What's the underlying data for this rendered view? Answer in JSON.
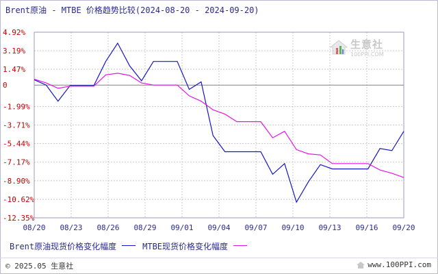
{
  "title": "Brent原油 - MTBE 价格趋势比较(2024-08-20 - 2024-09-20)",
  "watermark": {
    "main": "生意社",
    "sub": "100PPI.COM"
  },
  "legend": {
    "series1": "Brent原油现货价格变化幅度",
    "series2": "MTBE现货价格变化幅度"
  },
  "footer": {
    "copyright": "© 2025.05 生意社",
    "site": "www.100PPI.com"
  },
  "colors": {
    "series1": "#1414c8",
    "series2": "#e614e6",
    "axis": "#2a2a8a",
    "grid": "#c8c8c8"
  },
  "chart_data": {
    "type": "line",
    "x_ticks": [
      "08/20",
      "08/23",
      "08/26",
      "08/29",
      "09/01",
      "09/04",
      "09/07",
      "09/10",
      "09/13",
      "09/16",
      "09/20"
    ],
    "y_ticks": [
      "4.92%",
      "3.19%",
      "1.47%",
      "0",
      "-1.99%",
      "-3.71%",
      "-5.44%",
      "-7.17%",
      "-8.90%",
      "-10.62%",
      "-12.35%"
    ],
    "y_tick_values": [
      4.92,
      3.19,
      1.47,
      0,
      -1.99,
      -3.71,
      -5.44,
      -7.17,
      -8.9,
      -10.62,
      -12.35
    ],
    "ylim": [
      -12.35,
      4.92
    ],
    "x_start": "2024-08-20",
    "x_end": "2024-09-20",
    "series": [
      {
        "name": "Brent原油现货价格变化幅度",
        "color": "#1414c8",
        "points": [
          [
            "2024-08-20",
            0.5
          ],
          [
            "2024-08-21",
            0.0
          ],
          [
            "2024-08-22",
            -1.5
          ],
          [
            "2024-08-23",
            -0.05
          ],
          [
            "2024-08-24",
            -0.05
          ],
          [
            "2024-08-25",
            -0.05
          ],
          [
            "2024-08-26",
            2.2
          ],
          [
            "2024-08-27",
            3.9
          ],
          [
            "2024-08-28",
            1.8
          ],
          [
            "2024-08-29",
            0.4
          ],
          [
            "2024-08-30",
            2.2
          ],
          [
            "2024-08-31",
            2.2
          ],
          [
            "2024-09-01",
            2.2
          ],
          [
            "2024-09-02",
            -0.4
          ],
          [
            "2024-09-03",
            0.3
          ],
          [
            "2024-09-04",
            -4.7
          ],
          [
            "2024-09-05",
            -6.2
          ],
          [
            "2024-09-06",
            -6.2
          ],
          [
            "2024-09-07",
            -6.2
          ],
          [
            "2024-09-08",
            -6.2
          ],
          [
            "2024-09-09",
            -8.3
          ],
          [
            "2024-09-10",
            -7.3
          ],
          [
            "2024-09-11",
            -10.9
          ],
          [
            "2024-09-12",
            -9.0
          ],
          [
            "2024-09-13",
            -7.4
          ],
          [
            "2024-09-14",
            -7.8
          ],
          [
            "2024-09-15",
            -7.8
          ],
          [
            "2024-09-16",
            -7.8
          ],
          [
            "2024-09-17",
            -7.8
          ],
          [
            "2024-09-18",
            -5.9
          ],
          [
            "2024-09-19",
            -6.1
          ],
          [
            "2024-09-20",
            -4.3
          ]
        ]
      },
      {
        "name": "MTBE现货价格变化幅度",
        "color": "#e614e6",
        "points": [
          [
            "2024-08-20",
            0.55
          ],
          [
            "2024-08-21",
            0.2
          ],
          [
            "2024-08-22",
            -0.3
          ],
          [
            "2024-08-23",
            -0.1
          ],
          [
            "2024-08-24",
            -0.1
          ],
          [
            "2024-08-25",
            -0.1
          ],
          [
            "2024-08-26",
            0.95
          ],
          [
            "2024-08-27",
            1.1
          ],
          [
            "2024-08-28",
            0.9
          ],
          [
            "2024-08-29",
            0.2
          ],
          [
            "2024-08-30",
            0.0
          ],
          [
            "2024-08-31",
            0.0
          ],
          [
            "2024-09-01",
            0.0
          ],
          [
            "2024-09-02",
            -1.0
          ],
          [
            "2024-09-03",
            -1.5
          ],
          [
            "2024-09-04",
            -2.3
          ],
          [
            "2024-09-05",
            -2.7
          ],
          [
            "2024-09-06",
            -3.4
          ],
          [
            "2024-09-07",
            -3.4
          ],
          [
            "2024-09-08",
            -3.4
          ],
          [
            "2024-09-09",
            -4.9
          ],
          [
            "2024-09-10",
            -4.3
          ],
          [
            "2024-09-11",
            -6.0
          ],
          [
            "2024-09-12",
            -6.4
          ],
          [
            "2024-09-13",
            -6.5
          ],
          [
            "2024-09-14",
            -7.3
          ],
          [
            "2024-09-15",
            -7.3
          ],
          [
            "2024-09-16",
            -7.3
          ],
          [
            "2024-09-17",
            -7.3
          ],
          [
            "2024-09-18",
            -7.9
          ],
          [
            "2024-09-19",
            -8.2
          ],
          [
            "2024-09-20",
            -8.6
          ]
        ]
      }
    ],
    "grid": true,
    "legend_position": "bottom-left"
  }
}
